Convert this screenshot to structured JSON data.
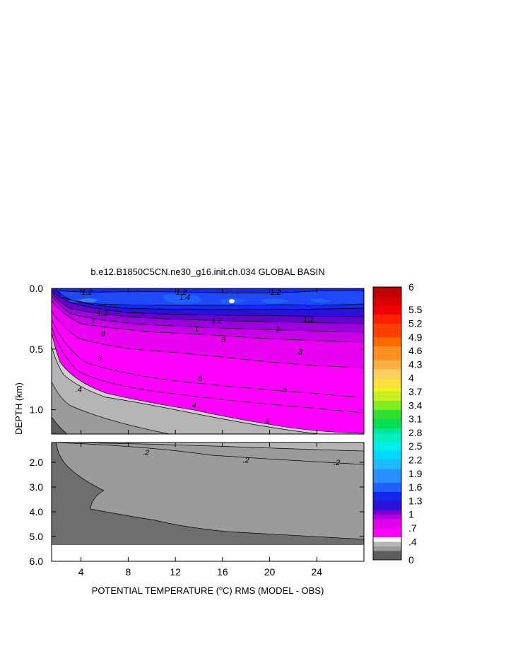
{
  "chart_data": {
    "type": "heatmap",
    "title": "b.e12.B1850C5CN.ne30_g16.init.ch.034 GLOBAL BASIN",
    "xlabel": "POTENTIAL TEMPERATURE (°C) RMS (MODEL - OBS)",
    "xlabel_parts": [
      "POTENTIAL TEMPERATURE (",
      "o",
      "C) RMS (MODEL - OBS)"
    ],
    "ylabel": "DEPTH (km)",
    "x_range": [
      1.5,
      28
    ],
    "x_ticks": [
      "4",
      "8",
      "12",
      "16",
      "20",
      "24"
    ],
    "x_tick_values": [
      4,
      8,
      12,
      16,
      20,
      24
    ],
    "upper_panel": {
      "depth_range": [
        0.0,
        1.2
      ],
      "y_ticks": [
        "0.0",
        "0.5",
        "1.0"
      ],
      "y_tick_values": [
        0.0,
        0.5,
        1.0
      ]
    },
    "lower_panel": {
      "depth_range": [
        1.2,
        6.0
      ],
      "y_ticks": [
        "2.0",
        "3.0",
        "4.0",
        "5.0",
        "6.0"
      ],
      "y_tick_values": [
        2.0,
        3.0,
        4.0,
        5.0,
        6.0
      ]
    },
    "colorbar_labels": [
      "0",
      ".4",
      ".7",
      "1",
      "1.3",
      "1.6",
      "1.9",
      "2.2",
      "2.5",
      "2.8",
      "3.1",
      "3.4",
      "3.7",
      "4",
      "4.3",
      "4.6",
      "4.9",
      "5.2",
      "5.5",
      "6"
    ],
    "colorbar_label_values": [
      0,
      0.4,
      0.7,
      1,
      1.3,
      1.6,
      1.9,
      2.2,
      2.5,
      2.8,
      3.1,
      3.4,
      3.7,
      4,
      4.3,
      4.6,
      4.9,
      5.2,
      5.5,
      6
    ],
    "contour_labels": [
      {
        "text": "1.2",
        "x": 4.5,
        "depth": 0.03
      },
      {
        "text": "1.2",
        "x": 12.5,
        "depth": 0.03
      },
      {
        "text": "1.4",
        "x": 12.8,
        "depth": 0.07
      },
      {
        "text": "1.2",
        "x": 20.5,
        "depth": 0.03
      },
      {
        "text": "1.2",
        "x": 5.8,
        "depth": 0.2
      },
      {
        "text": "1.2",
        "x": 15.5,
        "depth": 0.26
      },
      {
        "text": "1.2",
        "x": 23.3,
        "depth": 0.25
      },
      {
        "text": "1",
        "x": 5.0,
        "depth": 0.26
      },
      {
        "text": "1",
        "x": 13.8,
        "depth": 0.33
      },
      {
        "text": "1",
        "x": 20.7,
        "depth": 0.33
      },
      {
        "text": ".8",
        "x": 5.8,
        "depth": 0.37
      },
      {
        "text": ".8",
        "x": 16.0,
        "depth": 0.42
      },
      {
        "text": ".8",
        "x": 22.5,
        "depth": 0.52
      },
      {
        "text": ".6",
        "x": 5.5,
        "depth": 0.57
      },
      {
        "text": ".6",
        "x": 14.0,
        "depth": 0.74
      },
      {
        "text": ".6",
        "x": 21.2,
        "depth": 0.83
      },
      {
        "text": ".4",
        "x": 3.8,
        "depth": 0.83
      },
      {
        "text": ".4",
        "x": 13.5,
        "depth": 0.96
      },
      {
        "text": ".4",
        "x": 19.7,
        "depth": 1.09
      },
      {
        "text": ".2",
        "x": 9.5,
        "depth": 1.6
      },
      {
        "text": ".2",
        "x": 18.0,
        "depth": 1.9
      },
      {
        "text": ".2",
        "x": 25.7,
        "depth": 2.0
      }
    ]
  }
}
